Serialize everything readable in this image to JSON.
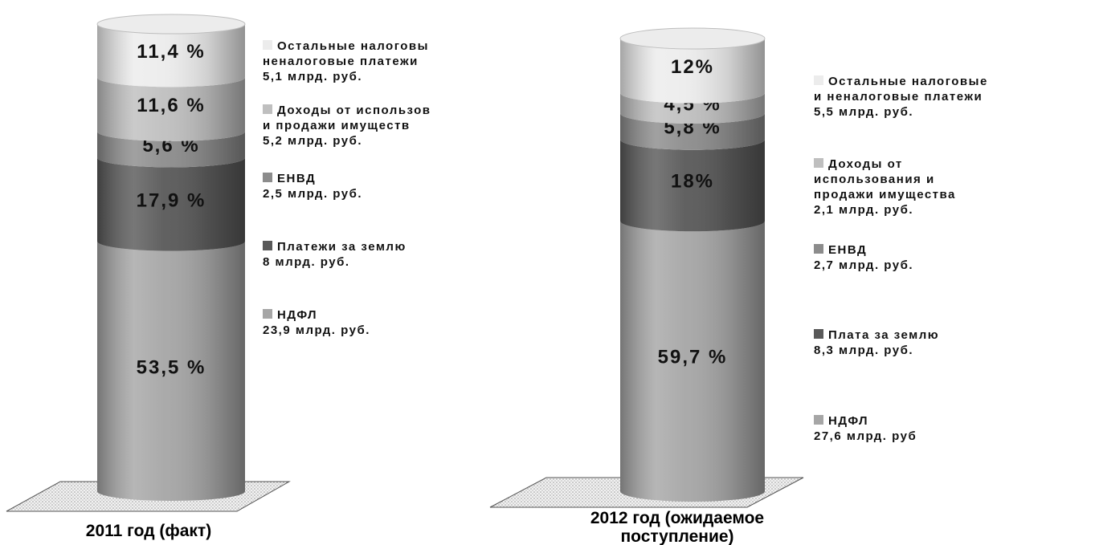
{
  "chart_data": [
    {
      "type": "bar",
      "stacked": true,
      "category": "2011 год (факт)",
      "series": [
        {
          "name": "НДФЛ",
          "value_label": "23,9 млрд. руб.",
          "percent": 53.5,
          "percent_label": "53,5 %",
          "color": "#a6a6a6"
        },
        {
          "name": "Платежи за землю",
          "value_label": "8 млрд. руб.",
          "percent": 17.9,
          "percent_label": "17,9 %",
          "color": "#595959"
        },
        {
          "name": "ЕНВД",
          "value_label": "2,5 млрд. руб.",
          "percent": 5.6,
          "percent_label": "5,6 %",
          "color": "#8c8c8c"
        },
        {
          "name": "Доходы от использов и продажи имуществ",
          "value_label": "5,2 млрд. руб.",
          "percent": 11.6,
          "percent_label": "11,6 %",
          "color": "#bfbfbf"
        },
        {
          "name": "Остальные налоговы неналоговые платеж",
          "value_label": "5,1 млрд. руб.",
          "percent": 11.4,
          "percent_label": "11,4 %",
          "color": "#ececec"
        }
      ]
    },
    {
      "type": "bar",
      "stacked": true,
      "category": "2012 год (ожидаемое поступление)",
      "series": [
        {
          "name": "НДФЛ",
          "value_label": "27,6 млрд. руб",
          "percent": 59.7,
          "percent_label": "59,7 %",
          "color": "#a6a6a6"
        },
        {
          "name": "Плата за землю",
          "value_label": "8,3 млрд. руб.",
          "percent": 18,
          "percent_label": "18%",
          "color": "#595959"
        },
        {
          "name": "ЕНВД",
          "value_label": "2,7 млрд. руб.",
          "percent": 5.8,
          "percent_label": "5,8 %",
          "color": "#8c8c8c"
        },
        {
          "name": "Доходы от использования и продажи имущества",
          "value_label": "2,1 млрд. руб.",
          "percent": 4.5,
          "percent_label": "4,5 %",
          "color": "#bfbfbf"
        },
        {
          "name": "Остальные налоговые и неналоговые платежи",
          "value_label": "5,5 млрд. руб.",
          "percent": 12,
          "percent_label": "12%",
          "color": "#ececec"
        }
      ]
    }
  ],
  "legends": [
    [
      {
        "lines": [
          "Остальные налоговы",
          "неналоговые платежи",
          "5,1 млрд. руб."
        ],
        "color": "#ececec"
      },
      {
        "lines": [
          "Доходы от использов",
          "и продажи имуществ",
          "5,2 млрд. руб."
        ],
        "color": "#bfbfbf"
      },
      {
        "lines": [
          "ЕНВД",
          "2,5 млрд. руб."
        ],
        "color": "#8c8c8c"
      },
      {
        "lines": [
          "Платежи за землю",
          "8 млрд. руб."
        ],
        "color": "#595959"
      },
      {
        "lines": [
          "НДФЛ",
          "23,9 млрд. руб."
        ],
        "color": "#a6a6a6"
      }
    ],
    [
      {
        "lines": [
          "Остальные налоговые",
          "и неналоговые платежи",
          "5,5 млрд. руб."
        ],
        "color": "#ececec"
      },
      {
        "lines": [
          "Доходы от",
          "использования и",
          "продажи имущества",
          "2,1 млрд. руб."
        ],
        "color": "#bfbfbf"
      },
      {
        "lines": [
          "ЕНВД",
          "2,7 млрд. руб."
        ],
        "color": "#8c8c8c"
      },
      {
        "lines": [
          "Плата за землю",
          "8,3 млрд. руб."
        ],
        "color": "#595959"
      },
      {
        "lines": [
          "НДФЛ",
          "27,6 млрд. руб"
        ],
        "color": "#a6a6a6"
      }
    ]
  ],
  "captions": [
    [
      "2011 год (факт)"
    ],
    [
      "2012 год (ожидаемое",
      "поступление)"
    ]
  ],
  "base_color": "#e2e2e2"
}
